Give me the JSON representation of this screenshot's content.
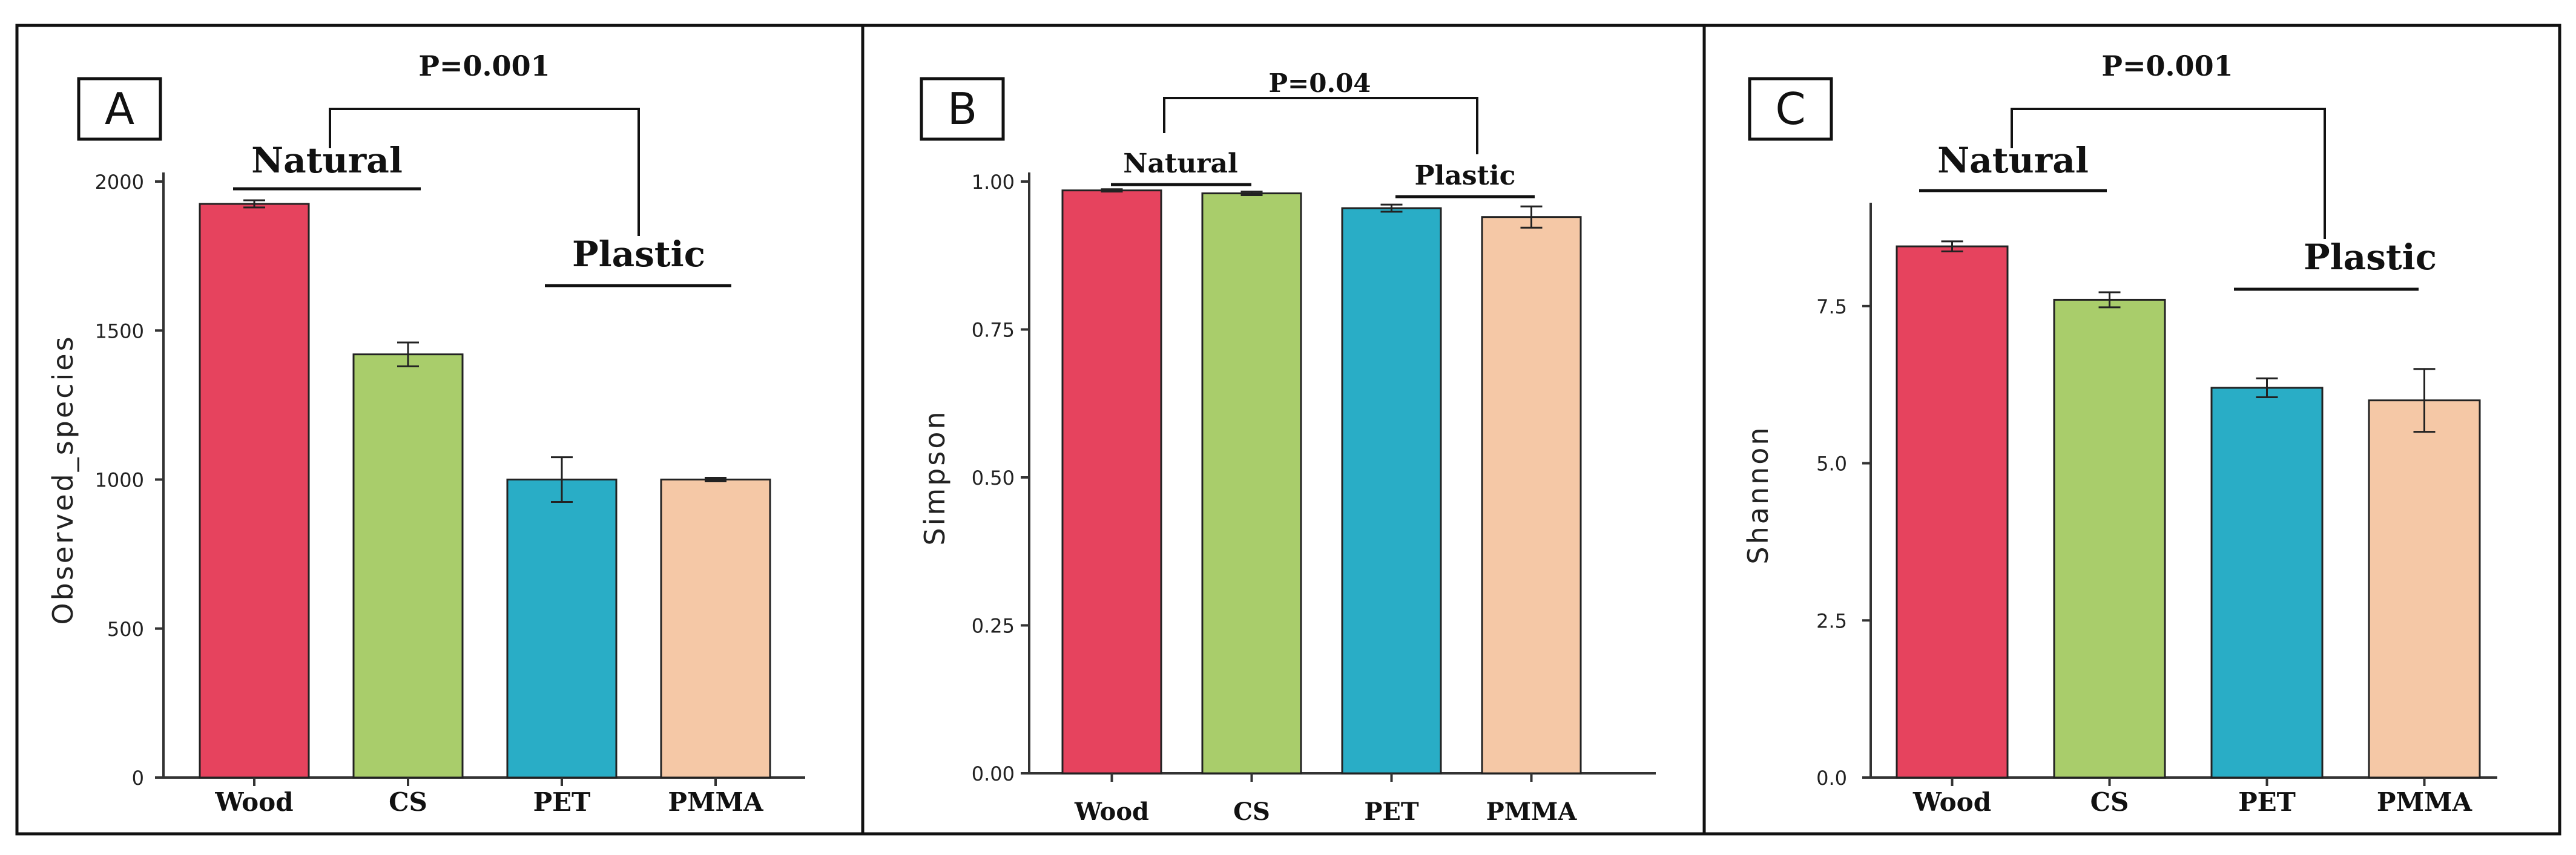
{
  "chart_data": [
    {
      "panel_label": "A",
      "type": "bar",
      "categories": [
        "Wood",
        "CS",
        "PET",
        "PMMA"
      ],
      "values": [
        1925,
        1420,
        1000,
        1000
      ],
      "errors": [
        12,
        40,
        75,
        6
      ],
      "colors": [
        "#e6435e",
        "#a9cd6b",
        "#29adc6",
        "#f5c8a6"
      ],
      "ylabel": "Observed_species",
      "xlabel": "",
      "ylim": [
        0,
        2000
      ],
      "yticks": [
        0,
        500,
        1000,
        1500,
        2000
      ],
      "ytick_labels": [
        "0",
        "500",
        "1000",
        "1500",
        "2000"
      ],
      "annotation": {
        "p_value": "P=0.001",
        "group_left": "Natural",
        "group_right": "Plastic"
      }
    },
    {
      "panel_label": "B",
      "type": "bar",
      "categories": [
        "Wood",
        "CS",
        "PET",
        "PMMA"
      ],
      "values": [
        0.985,
        0.98,
        0.955,
        0.94
      ],
      "errors": [
        0.002,
        0.003,
        0.006,
        0.018
      ],
      "colors": [
        "#e6435e",
        "#a9cd6b",
        "#29adc6",
        "#f5c8a6"
      ],
      "ylabel": "Simpson",
      "xlabel": "",
      "ylim": [
        0,
        1.0
      ],
      "yticks": [
        0,
        0.25,
        0.5,
        0.75,
        1.0
      ],
      "ytick_labels": [
        "0.00",
        "0.25",
        "0.50",
        "0.75",
        "1.00"
      ],
      "annotation": {
        "p_value": "P=0.04",
        "group_left": "Natural",
        "group_right": "Plastic"
      }
    },
    {
      "panel_label": "C",
      "type": "bar",
      "categories": [
        "Wood",
        "CS",
        "PET",
        "PMMA"
      ],
      "values": [
        8.45,
        7.6,
        6.2,
        6.0
      ],
      "errors": [
        0.08,
        0.12,
        0.15,
        0.5
      ],
      "colors": [
        "#e6435e",
        "#a9cd6b",
        "#29adc6",
        "#f5c8a6"
      ],
      "ylabel": "Shannon",
      "xlabel": "",
      "ylim": [
        0,
        9
      ],
      "yticks": [
        0,
        2.5,
        5,
        7.5
      ],
      "ytick_labels": [
        "0.0",
        "2.5",
        "5.0",
        "7.5"
      ],
      "annotation": {
        "p_value": "P=0.001",
        "group_left": "Natural",
        "group_right": "Plastic"
      }
    }
  ]
}
